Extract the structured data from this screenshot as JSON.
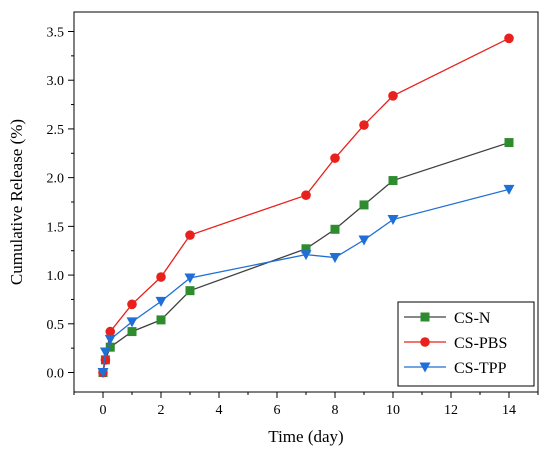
{
  "chart_data": {
    "type": "line",
    "title": "",
    "xlabel": "Time (day)",
    "ylabel": "Cumulative Release (%)",
    "xlim": [
      -1,
      15
    ],
    "ylim": [
      -0.2,
      3.7
    ],
    "x_ticks": [
      0,
      2,
      4,
      6,
      8,
      10,
      12,
      14
    ],
    "y_ticks": [
      0.0,
      0.5,
      1.0,
      1.5,
      2.0,
      2.5,
      3.0,
      3.5
    ],
    "x_tick_labels": [
      "0",
      "2",
      "4",
      "6",
      "8",
      "10",
      "12",
      "14"
    ],
    "y_tick_labels": [
      "0.0",
      "0.5",
      "1.0",
      "1.5",
      "2.0",
      "2.5",
      "3.0",
      "3.5"
    ],
    "grid": false,
    "legend_position": "bottom-right",
    "series": [
      {
        "name": "CS-N",
        "color": "#2e8b2e",
        "line_color": "#404040",
        "marker": "square",
        "x": [
          0,
          0.083,
          0.25,
          1,
          2,
          3,
          7,
          8,
          9,
          10,
          14
        ],
        "values": [
          0,
          0.13,
          0.26,
          0.42,
          0.54,
          0.84,
          1.27,
          1.47,
          1.72,
          1.97,
          2.36
        ]
      },
      {
        "name": "CS-PBS",
        "color": "#e8211d",
        "line_color": "#e8211d",
        "marker": "circle",
        "x": [
          0,
          0.083,
          0.25,
          1,
          2,
          3,
          7,
          8,
          9,
          10,
          14
        ],
        "values": [
          0,
          0.13,
          0.42,
          0.7,
          0.98,
          1.41,
          1.82,
          2.2,
          2.54,
          2.84,
          3.43
        ]
      },
      {
        "name": "CS-TPP",
        "color": "#1f6fd6",
        "line_color": "#1f6fd6",
        "marker": "triangle-down",
        "x": [
          0,
          0.083,
          0.25,
          1,
          2,
          3,
          7,
          8,
          9,
          10,
          14
        ],
        "values": [
          0,
          0.21,
          0.34,
          0.52,
          0.73,
          0.97,
          1.21,
          1.18,
          1.36,
          1.57,
          1.88
        ]
      }
    ]
  }
}
